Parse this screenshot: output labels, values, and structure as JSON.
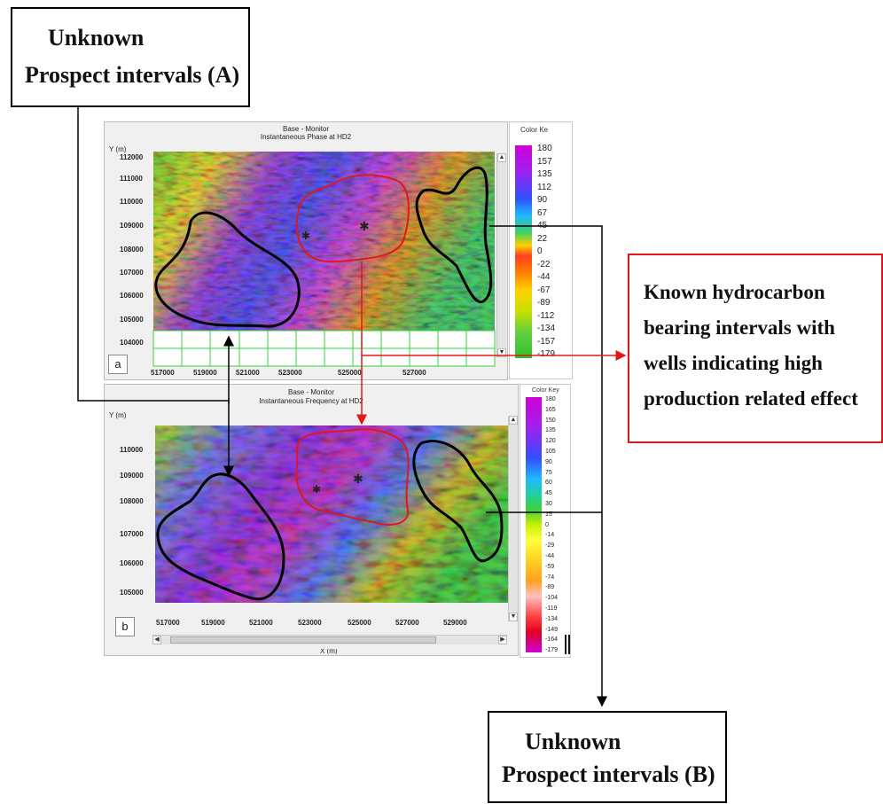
{
  "callouts": {
    "prospect_a": {
      "line1": "Unknown",
      "line2": "Prospect intervals (A)"
    },
    "prospect_b": {
      "line1": "Unknown",
      "line2": "Prospect intervals (B)"
    },
    "known": {
      "line1": "Known hydrocarbon",
      "line2": "bearing intervals with",
      "line3": "wells indicating high",
      "line4": "production related effect"
    }
  },
  "panel_a": {
    "label": "a",
    "title1": "Base - Monitor",
    "title2": "Instantaneous Phase at HD2",
    "y_axis_label": "Y (m)",
    "y_ticks": [
      "112000",
      "111000",
      "110000",
      "109000",
      "108000",
      "107000",
      "106000",
      "105000",
      "104000"
    ],
    "x_ticks": [
      "517000",
      "519000",
      "521000",
      "523000",
      "525000",
      "527000"
    ],
    "color_key_title": "Color Ke",
    "color_key_values": [
      "180",
      "157",
      "135",
      "112",
      "90",
      "67",
      "45",
      "22",
      "0",
      "-22",
      "-44",
      "-67",
      "-89",
      "-112",
      "-134",
      "-157",
      "-179"
    ]
  },
  "panel_b": {
    "label": "b",
    "title1": "Base - Monitor",
    "title2": "Instantaneous Frequency at HD2",
    "y_axis_label": "Y (m)",
    "y_ticks": [
      "110000",
      "109000",
      "108000",
      "107000",
      "106000",
      "105000"
    ],
    "x_ticks": [
      "517000",
      "519000",
      "521000",
      "523000",
      "525000",
      "527000",
      "529000"
    ],
    "x_axis_label": "X (m)",
    "color_key_title": "Color Key",
    "color_key_values": [
      "180",
      "165",
      "150",
      "135",
      "120",
      "105",
      "90",
      "75",
      "60",
      "45",
      "30",
      "15",
      "0",
      "-14",
      "-29",
      "-44",
      "-59",
      "-74",
      "-89",
      "-104",
      "-119",
      "-134",
      "-149",
      "-164",
      "-179"
    ]
  },
  "colors": {
    "outline_prospect": "#000000",
    "outline_known": "#e01818",
    "arrow_black": "#000000",
    "arrow_red": "#e01818"
  }
}
